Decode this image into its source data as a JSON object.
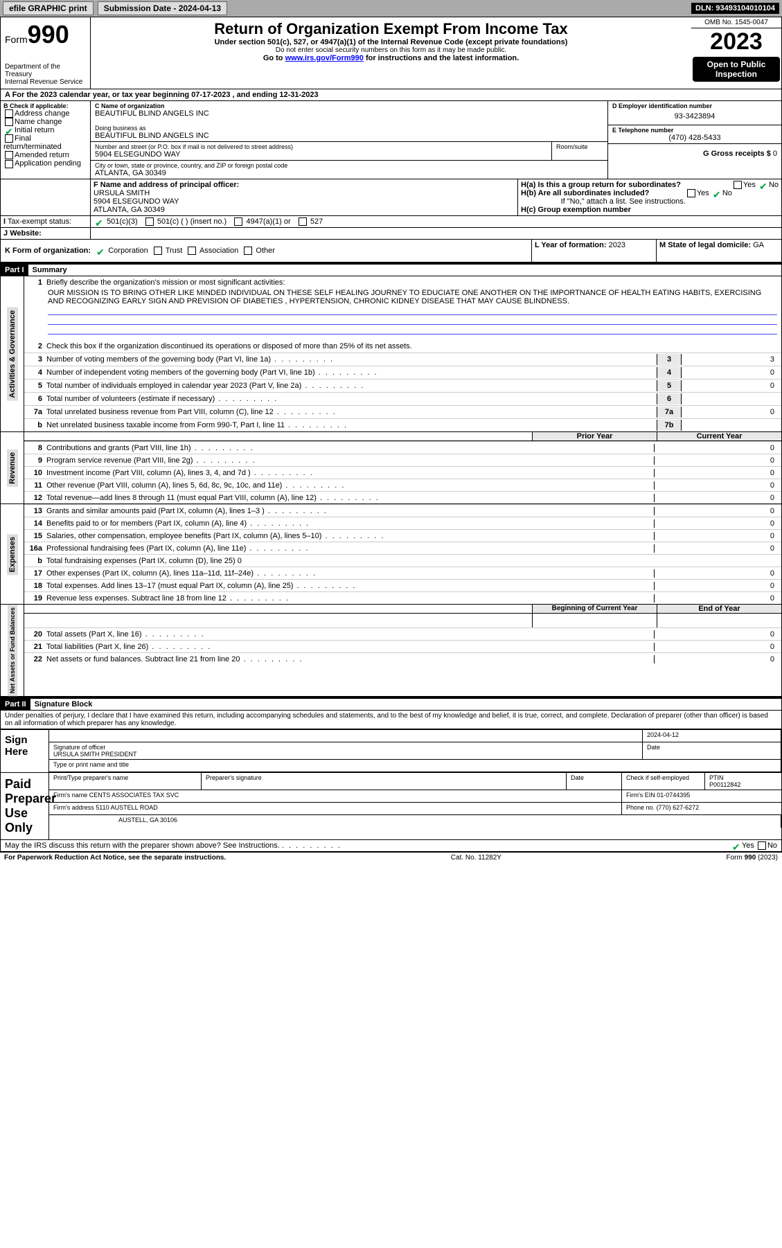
{
  "topbar": {
    "efile": "efile GRAPHIC print",
    "submission": "Submission Date - 2024-04-13",
    "dln": "DLN: 93493104010104"
  },
  "header": {
    "form_label": "Form",
    "form_number": "990",
    "title": "Return of Organization Exempt From Income Tax",
    "subtitle": "Under section 501(c), 527, or 4947(a)(1) of the Internal Revenue Code (except private foundations)",
    "ssn_note": "Do not enter social security numbers on this form as it may be made public.",
    "goto": "Go to ",
    "url": "www.irs.gov/Form990",
    "goto_suffix": " for instructions and the latest information.",
    "dept": "Department of the Treasury\nInternal Revenue Service",
    "omb": "OMB No. 1545-0047",
    "year": "2023",
    "inspect": "Open to Public Inspection"
  },
  "periodA": "A For the 2023 calendar year, or tax year beginning 07-17-2023    , and ending 12-31-2023",
  "sectionB": {
    "label": "B Check if applicable:",
    "opts": [
      "Address change",
      "Name change",
      "Initial return",
      "Final return/terminated",
      "Amended return",
      "Application pending"
    ],
    "checked_idx": 2
  },
  "sectionC": {
    "name_label": "C Name of organization",
    "name": "BEAUTIFUL BLIND ANGELS INC",
    "dba_label": "Doing business as",
    "dba": "BEAUTIFUL BLIND ANGELS INC",
    "street_label": "Number and street (or P.O. box if mail is not delivered to street address)",
    "street": "5904 ELSEGUNDO WAY",
    "room_label": "Room/suite",
    "city_label": "City or town, state or province, country, and ZIP or foreign postal code",
    "city": "ATLANTA, GA  30349"
  },
  "sectionD": {
    "label": "D Employer identification number",
    "value": "93-3423894"
  },
  "sectionE": {
    "label": "E Telephone number",
    "value": "(470) 428-5433"
  },
  "sectionG": {
    "label": "G Gross receipts $",
    "value": "0"
  },
  "sectionF": {
    "label": "F  Name and address of principal officer:",
    "name": "URSULA SMITH",
    "street": "5904 ELSEGUNDO WAY",
    "city": "ATLANTA, GA  30349"
  },
  "sectionH": {
    "a": "H(a)  Is this a group return for subordinates?",
    "b": "H(b)  Are all subordinates included?",
    "note": "If \"No,\" attach a list. See instructions.",
    "c": "H(c)  Group exemption number  ",
    "yes": "Yes",
    "no": "No"
  },
  "sectionI": {
    "label": "Tax-exempt status:",
    "opts": [
      "501(c)(3)",
      "501(c) (  ) (insert no.)",
      "4947(a)(1) or",
      "527"
    ]
  },
  "sectionJ": {
    "label": "Website:  "
  },
  "sectionK": {
    "label": "K Form of organization:",
    "opts": [
      "Corporation",
      "Trust",
      "Association",
      "Other"
    ]
  },
  "sectionL": {
    "label": "L Year of formation:",
    "value": "2023"
  },
  "sectionM": {
    "label": "M State of legal domicile:",
    "value": "GA"
  },
  "part1": {
    "hdr": "Part I",
    "title": "Summary",
    "line1_label": "Briefly describe the organization's mission or most significant activities:",
    "mission": "OUR MISSION IS TO BRING OTHER LIKE MINDED INDIVIDUAL ON THESE SELF HEALING JOURNEY TO EDUCIATE ONE ANOTHER ON THE IMPORTNANCE OF HEALTH EATING HABITS, EXERCISING AND RECOGNIZING EARLY SIGN AND PREVISION OF DIABETIES , HYPERTENSION, CHRONIC KIDNEY DISEASE THAT MAY CAUSE BLINDNESS.",
    "line2": "Check this box      if the organization discontinued its operations or disposed of more than 25% of its net assets.",
    "lines_gov": [
      {
        "n": "3",
        "t": "Number of voting members of the governing body (Part VI, line 1a)",
        "box": "3",
        "v": "3"
      },
      {
        "n": "4",
        "t": "Number of independent voting members of the governing body (Part VI, line 1b)",
        "box": "4",
        "v": "0"
      },
      {
        "n": "5",
        "t": "Total number of individuals employed in calendar year 2023 (Part V, line 2a)",
        "box": "5",
        "v": "0"
      },
      {
        "n": "6",
        "t": "Total number of volunteers (estimate if necessary)",
        "box": "6",
        "v": ""
      },
      {
        "n": "7a",
        "t": "Total unrelated business revenue from Part VIII, column (C), line 12",
        "box": "7a",
        "v": "0"
      },
      {
        "n": "b",
        "t": "Net unrelated business taxable income from Form 990-T, Part I, line 11",
        "box": "7b",
        "v": ""
      }
    ],
    "col_prior": "Prior Year",
    "col_current": "Current Year",
    "lines_rev": [
      {
        "n": "8",
        "t": "Contributions and grants (Part VIII, line 1h)",
        "p": "",
        "c": "0"
      },
      {
        "n": "9",
        "t": "Program service revenue (Part VIII, line 2g)",
        "p": "",
        "c": "0"
      },
      {
        "n": "10",
        "t": "Investment income (Part VIII, column (A), lines 3, 4, and 7d )",
        "p": "",
        "c": "0"
      },
      {
        "n": "11",
        "t": "Other revenue (Part VIII, column (A), lines 5, 6d, 8c, 9c, 10c, and 11e)",
        "p": "",
        "c": "0"
      },
      {
        "n": "12",
        "t": "Total revenue—add lines 8 through 11 (must equal Part VIII, column (A), line 12)",
        "p": "",
        "c": "0"
      }
    ],
    "lines_exp": [
      {
        "n": "13",
        "t": "Grants and similar amounts paid (Part IX, column (A), lines 1–3 )",
        "p": "",
        "c": "0"
      },
      {
        "n": "14",
        "t": "Benefits paid to or for members (Part IX, column (A), line 4)",
        "p": "",
        "c": "0"
      },
      {
        "n": "15",
        "t": "Salaries, other compensation, employee benefits (Part IX, column (A), lines 5–10)",
        "p": "",
        "c": "0"
      },
      {
        "n": "16a",
        "t": "Professional fundraising fees (Part IX, column (A), line 11e)",
        "p": "",
        "c": "0"
      },
      {
        "n": "b",
        "t": "Total fundraising expenses (Part IX, column (D), line 25) 0",
        "grey": true
      },
      {
        "n": "17",
        "t": "Other expenses (Part IX, column (A), lines 11a–11d, 11f–24e)",
        "p": "",
        "c": "0"
      },
      {
        "n": "18",
        "t": "Total expenses. Add lines 13–17 (must equal Part IX, column (A), line 25)",
        "p": "",
        "c": "0"
      },
      {
        "n": "19",
        "t": "Revenue less expenses. Subtract line 18 from line 12",
        "p": "",
        "c": "0"
      }
    ],
    "col_begin": "Beginning of Current Year",
    "col_end": "End of Year",
    "lines_net": [
      {
        "n": "20",
        "t": "Total assets (Part X, line 16)",
        "p": "",
        "c": "0"
      },
      {
        "n": "21",
        "t": "Total liabilities (Part X, line 26)",
        "p": "",
        "c": "0"
      },
      {
        "n": "22",
        "t": "Net assets or fund balances. Subtract line 21 from line 20",
        "p": "",
        "c": "0"
      }
    ],
    "side_gov": "Activities & Governance",
    "side_rev": "Revenue",
    "side_exp": "Expenses",
    "side_net": "Net Assets or Fund Balances"
  },
  "part2": {
    "hdr": "Part II",
    "title": "Signature Block",
    "perjury": "Under penalties of perjury, I declare that I have examined this return, including accompanying schedules and statements, and to the best of my knowledge and belief, it is true, correct, and complete. Declaration of preparer (other than officer) is based on all information of which preparer has any knowledge."
  },
  "sign": {
    "label": "Sign Here",
    "officer_label": "Signature of officer",
    "officer": "URSULA SMITH  PRESIDENT",
    "type_label": "Type or print name and title",
    "date_label": "Date",
    "date": "2024-04-12"
  },
  "paid": {
    "label": "Paid Preparer Use Only",
    "hdr_name": "Print/Type preparer's name",
    "hdr_sig": "Preparer's signature",
    "hdr_date": "Date",
    "hdr_check": "Check         if self-employed",
    "hdr_ptin": "PTIN",
    "ptin": "P00112842",
    "firm_name_label": "Firm's name   ",
    "firm_name": "CENTS ASSOCIATES TAX SVC",
    "firm_ein_label": "Firm's EIN  ",
    "firm_ein": "01-0744395",
    "firm_addr_label": "Firm's address ",
    "firm_addr1": "5110 AUSTELL ROAD",
    "firm_addr2": "AUSTELL, GA  30106",
    "phone_label": "Phone no.",
    "phone": "(770) 627-6272"
  },
  "discuss": {
    "text": "May the IRS discuss this return with the preparer shown above? See Instructions.",
    "yes": "Yes",
    "no": "No"
  },
  "footer": {
    "left": "For Paperwork Reduction Act Notice, see the separate instructions.",
    "mid": "Cat. No. 11282Y",
    "right": "Form 990 (2023)"
  }
}
